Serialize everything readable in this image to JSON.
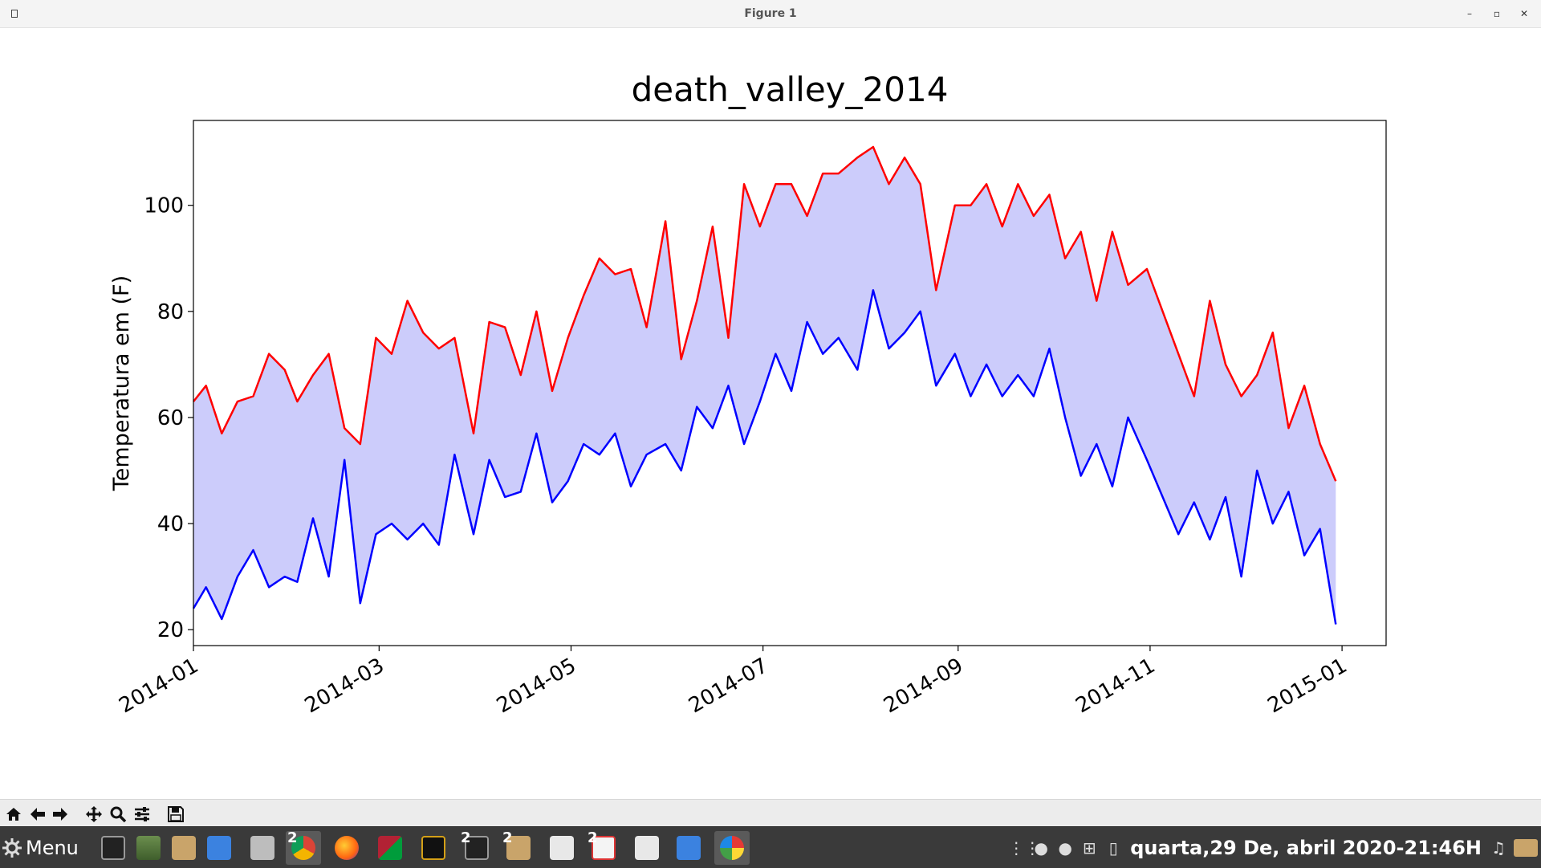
{
  "window": {
    "title": "Figure 1"
  },
  "chart_data": {
    "type": "line",
    "title": "death_valley_2014",
    "xlabel": "",
    "ylabel": "Temperatura em (F)",
    "xlim": [
      "2014-01-01",
      "2015-01-15"
    ],
    "ylim": [
      17,
      116
    ],
    "x_ticks": [
      "2014-01",
      "2014-03",
      "2014-05",
      "2014-07",
      "2014-09",
      "2014-11",
      "2015-01"
    ],
    "y_ticks": [
      20,
      40,
      60,
      80,
      100
    ],
    "fill_between": true,
    "colors": {
      "high": "#ff0000",
      "low": "#0000ff",
      "fill": "#ccccfb"
    },
    "series": [
      {
        "color": "#ff0000",
        "points": [
          [
            "2014-01-01",
            63
          ],
          [
            "2014-01-05",
            66
          ],
          [
            "2014-01-10",
            57
          ],
          [
            "2014-01-15",
            63
          ],
          [
            "2014-01-20",
            64
          ],
          [
            "2014-01-25",
            72
          ],
          [
            "2014-01-30",
            69
          ],
          [
            "2014-02-03",
            63
          ],
          [
            "2014-02-08",
            68
          ],
          [
            "2014-02-13",
            72
          ],
          [
            "2014-02-18",
            58
          ],
          [
            "2014-02-23",
            55
          ],
          [
            "2014-02-28",
            75
          ],
          [
            "2014-03-05",
            72
          ],
          [
            "2014-03-10",
            82
          ],
          [
            "2014-03-15",
            76
          ],
          [
            "2014-03-20",
            73
          ],
          [
            "2014-03-25",
            75
          ],
          [
            "2014-03-31",
            57
          ],
          [
            "2014-04-05",
            78
          ],
          [
            "2014-04-10",
            77
          ],
          [
            "2014-04-15",
            68
          ],
          [
            "2014-04-20",
            80
          ],
          [
            "2014-04-25",
            65
          ],
          [
            "2014-04-30",
            75
          ],
          [
            "2014-05-05",
            83
          ],
          [
            "2014-05-10",
            90
          ],
          [
            "2014-05-15",
            87
          ],
          [
            "2014-05-20",
            88
          ],
          [
            "2014-05-25",
            77
          ],
          [
            "2014-05-31",
            97
          ],
          [
            "2014-06-05",
            71
          ],
          [
            "2014-06-10",
            82
          ],
          [
            "2014-06-15",
            96
          ],
          [
            "2014-06-20",
            75
          ],
          [
            "2014-06-25",
            104
          ],
          [
            "2014-06-30",
            96
          ],
          [
            "2014-07-05",
            104
          ],
          [
            "2014-07-10",
            104
          ],
          [
            "2014-07-15",
            98
          ],
          [
            "2014-07-20",
            106
          ],
          [
            "2014-07-25",
            106
          ],
          [
            "2014-07-31",
            109
          ],
          [
            "2014-08-05",
            111
          ],
          [
            "2014-08-10",
            104
          ],
          [
            "2014-08-15",
            109
          ],
          [
            "2014-08-20",
            104
          ],
          [
            "2014-08-25",
            84
          ],
          [
            "2014-08-31",
            100
          ],
          [
            "2014-09-05",
            100
          ],
          [
            "2014-09-10",
            104
          ],
          [
            "2014-09-15",
            96
          ],
          [
            "2014-09-20",
            104
          ],
          [
            "2014-09-25",
            98
          ],
          [
            "2014-09-30",
            102
          ],
          [
            "2014-10-05",
            90
          ],
          [
            "2014-10-10",
            95
          ],
          [
            "2014-10-15",
            82
          ],
          [
            "2014-10-20",
            95
          ],
          [
            "2014-10-25",
            85
          ],
          [
            "2014-10-31",
            88
          ],
          [
            "2014-11-05",
            80
          ],
          [
            "2014-11-10",
            72
          ],
          [
            "2014-11-15",
            64
          ],
          [
            "2014-11-20",
            82
          ],
          [
            "2014-11-25",
            70
          ],
          [
            "2014-11-30",
            64
          ],
          [
            "2014-12-05",
            68
          ],
          [
            "2014-12-10",
            76
          ],
          [
            "2014-12-15",
            58
          ],
          [
            "2014-12-20",
            66
          ],
          [
            "2014-12-25",
            55
          ],
          [
            "2014-12-30",
            48
          ]
        ]
      },
      {
        "color": "#0000ff",
        "points": [
          [
            "2014-01-01",
            24
          ],
          [
            "2014-01-05",
            28
          ],
          [
            "2014-01-10",
            22
          ],
          [
            "2014-01-15",
            30
          ],
          [
            "2014-01-20",
            35
          ],
          [
            "2014-01-25",
            28
          ],
          [
            "2014-01-30",
            30
          ],
          [
            "2014-02-03",
            29
          ],
          [
            "2014-02-08",
            41
          ],
          [
            "2014-02-13",
            30
          ],
          [
            "2014-02-18",
            52
          ],
          [
            "2014-02-23",
            25
          ],
          [
            "2014-02-28",
            38
          ],
          [
            "2014-03-05",
            40
          ],
          [
            "2014-03-10",
            37
          ],
          [
            "2014-03-15",
            40
          ],
          [
            "2014-03-20",
            36
          ],
          [
            "2014-03-25",
            53
          ],
          [
            "2014-03-31",
            38
          ],
          [
            "2014-04-05",
            52
          ],
          [
            "2014-04-10",
            45
          ],
          [
            "2014-04-15",
            46
          ],
          [
            "2014-04-20",
            57
          ],
          [
            "2014-04-25",
            44
          ],
          [
            "2014-04-30",
            48
          ],
          [
            "2014-05-05",
            55
          ],
          [
            "2014-05-10",
            53
          ],
          [
            "2014-05-15",
            57
          ],
          [
            "2014-05-20",
            47
          ],
          [
            "2014-05-25",
            53
          ],
          [
            "2014-05-31",
            55
          ],
          [
            "2014-06-05",
            50
          ],
          [
            "2014-06-10",
            62
          ],
          [
            "2014-06-15",
            58
          ],
          [
            "2014-06-20",
            66
          ],
          [
            "2014-06-25",
            55
          ],
          [
            "2014-06-30",
            63
          ],
          [
            "2014-07-05",
            72
          ],
          [
            "2014-07-10",
            65
          ],
          [
            "2014-07-15",
            78
          ],
          [
            "2014-07-20",
            72
          ],
          [
            "2014-07-25",
            75
          ],
          [
            "2014-07-31",
            69
          ],
          [
            "2014-08-05",
            84
          ],
          [
            "2014-08-10",
            73
          ],
          [
            "2014-08-15",
            76
          ],
          [
            "2014-08-20",
            80
          ],
          [
            "2014-08-25",
            66
          ],
          [
            "2014-08-31",
            72
          ],
          [
            "2014-09-05",
            64
          ],
          [
            "2014-09-10",
            70
          ],
          [
            "2014-09-15",
            64
          ],
          [
            "2014-09-20",
            68
          ],
          [
            "2014-09-25",
            64
          ],
          [
            "2014-09-30",
            73
          ],
          [
            "2014-10-05",
            60
          ],
          [
            "2014-10-10",
            49
          ],
          [
            "2014-10-15",
            55
          ],
          [
            "2014-10-20",
            47
          ],
          [
            "2014-10-25",
            60
          ],
          [
            "2014-10-31",
            52
          ],
          [
            "2014-11-05",
            45
          ],
          [
            "2014-11-10",
            38
          ],
          [
            "2014-11-15",
            44
          ],
          [
            "2014-11-20",
            37
          ],
          [
            "2014-11-25",
            45
          ],
          [
            "2014-11-30",
            30
          ],
          [
            "2014-12-05",
            50
          ],
          [
            "2014-12-10",
            40
          ],
          [
            "2014-12-15",
            46
          ],
          [
            "2014-12-20",
            34
          ],
          [
            "2014-12-25",
            39
          ],
          [
            "2014-12-30",
            21
          ]
        ]
      }
    ]
  },
  "toolbar": {
    "buttons": [
      {
        "name": "home-icon"
      },
      {
        "name": "back-arrow-icon"
      },
      {
        "name": "forward-arrow-icon"
      },
      {
        "name": "pan-icon"
      },
      {
        "name": "zoom-icon"
      },
      {
        "name": "configure-subplots-icon"
      },
      {
        "name": "save-icon"
      }
    ]
  },
  "taskbar": {
    "menu_label": "Menu",
    "apps": [
      {
        "name": "terminal",
        "badge": ""
      },
      {
        "name": "calculator",
        "badge": ""
      },
      {
        "name": "files",
        "badge": ""
      },
      {
        "name": "writer",
        "badge": ""
      },
      {
        "name": "archive",
        "badge": ""
      },
      {
        "name": "chrome",
        "badge": "2"
      },
      {
        "name": "firefox",
        "badge": ""
      },
      {
        "name": "dictionary-flag",
        "badge": ""
      },
      {
        "name": "dic",
        "badge": ""
      },
      {
        "name": "terminal-2",
        "badge": "2"
      },
      {
        "name": "files-2",
        "badge": "2"
      },
      {
        "name": "text-editor",
        "badge": ""
      },
      {
        "name": "draw",
        "badge": "2"
      },
      {
        "name": "text-editor-2",
        "badge": ""
      },
      {
        "name": "writer-2",
        "badge": ""
      },
      {
        "name": "pinwheel",
        "badge": ""
      }
    ],
    "clock": "quarta,29 De, abril 2020-21:46H"
  }
}
